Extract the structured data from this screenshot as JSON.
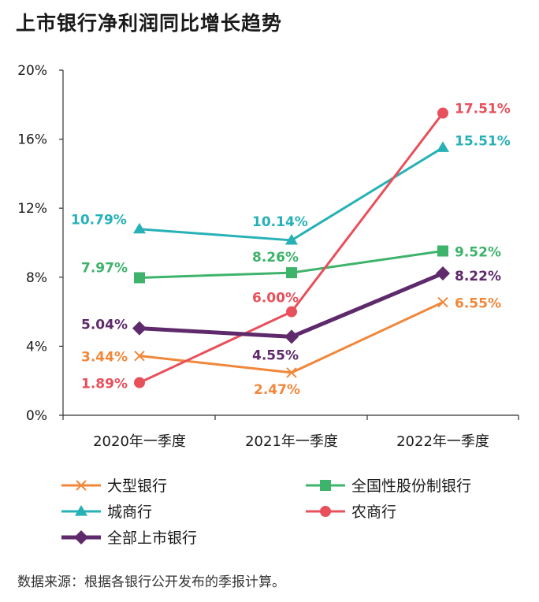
{
  "chart_data": {
    "type": "line",
    "title": "上市银行净利润同比增长趋势",
    "source": "数据来源：根据各银行公开发布的季报计算。",
    "categories": [
      "2020年一季度",
      "2021年一季度",
      "2022年一季度"
    ],
    "ylim": [
      0,
      20
    ],
    "yticks": [
      {
        "value": 0,
        "label": "0%"
      },
      {
        "value": 4,
        "label": "4%"
      },
      {
        "value": 8,
        "label": "8%"
      },
      {
        "value": 12,
        "label": "12%"
      },
      {
        "value": 16,
        "label": "16%"
      },
      {
        "value": 20,
        "label": "20%"
      }
    ],
    "grid": false,
    "legend_position": "bottom",
    "series": [
      {
        "id": "large",
        "name": "大型银行",
        "color": "#F0873A",
        "marker": "x",
        "values": [
          3.44,
          2.47,
          6.55
        ],
        "labels": [
          "3.44%",
          "2.47%",
          "6.55%"
        ]
      },
      {
        "id": "joint",
        "name": "全国性股份制银行",
        "color": "#3DB36B",
        "marker": "square",
        "values": [
          7.97,
          8.26,
          9.52
        ],
        "labels": [
          "7.97%",
          "8.26%",
          "9.52%"
        ]
      },
      {
        "id": "city",
        "name": "城商行",
        "color": "#26B1B7",
        "marker": "triangle",
        "values": [
          10.79,
          10.14,
          15.51
        ],
        "labels": [
          "10.79%",
          "10.14%",
          "15.51%"
        ]
      },
      {
        "id": "rural",
        "name": "农商行",
        "color": "#E8505B",
        "marker": "circle",
        "values": [
          1.89,
          6.0,
          17.51
        ],
        "labels": [
          "1.89%",
          "6.00%",
          "17.51%"
        ]
      },
      {
        "id": "all",
        "name": "全部上市银行",
        "color": "#5E2A6B",
        "marker": "diamond",
        "values": [
          5.04,
          4.55,
          8.22
        ],
        "labels": [
          "5.04%",
          "4.55%",
          "8.22%"
        ]
      }
    ]
  }
}
